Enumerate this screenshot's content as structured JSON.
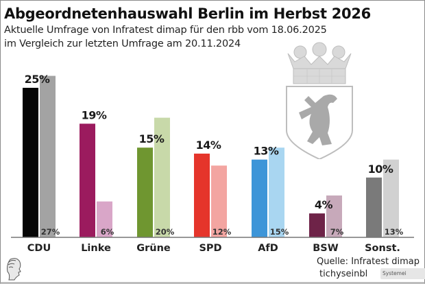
{
  "header": {
    "title": "Abgeordnetenhauswahl Berlin im Herbst 2026",
    "subtitle_line1": "Aktuelle Umfrage von Infratest dimap für den rbb vom 18.06.2025",
    "subtitle_line2": "im Vergleich zur letzten Umfrage am 20.11.2024"
  },
  "footer": {
    "source": "Quelle: Infratest dimap",
    "brand": "tichyseinbl",
    "overlay_text": "Systemei"
  },
  "icons": {
    "coat_of_arms": "berlin-coat-of-arms-icon",
    "publisher_logo": "classical-head-logo-icon"
  },
  "chart_data": {
    "type": "bar",
    "title": "Abgeordnetenhauswahl Berlin im Herbst 2026",
    "xlabel": "",
    "ylabel": "",
    "ylim": [
      0,
      28
    ],
    "grid": false,
    "legend": "none",
    "categories": [
      "CDU",
      "Linke",
      "Grüne",
      "SPD",
      "AfD",
      "BSW",
      "Sonst."
    ],
    "series": [
      {
        "name": "Umfrage 18.06.2025",
        "values": [
          25,
          19,
          15,
          14,
          13,
          4,
          10
        ],
        "labels": [
          "25%",
          "19%",
          "15%",
          "14%",
          "13%",
          "4%",
          "10%"
        ],
        "colors": [
          "#050505",
          "#9b1b5e",
          "#6f9630",
          "#e5352b",
          "#3d95d8",
          "#6e2348",
          "#7a7a7a"
        ]
      },
      {
        "name": "Umfrage 20.11.2024",
        "values": [
          27,
          6,
          20,
          12,
          15,
          7,
          13
        ],
        "labels": [
          "27%",
          "6%",
          "20%",
          "12%",
          "15%",
          "7%",
          "13%"
        ],
        "colors": [
          "#a3a3a3",
          "#d9a6c8",
          "#c8d9a9",
          "#f3a5a1",
          "#a9d6f1",
          "#c7a9ba",
          "#d1d1d1"
        ]
      }
    ]
  }
}
